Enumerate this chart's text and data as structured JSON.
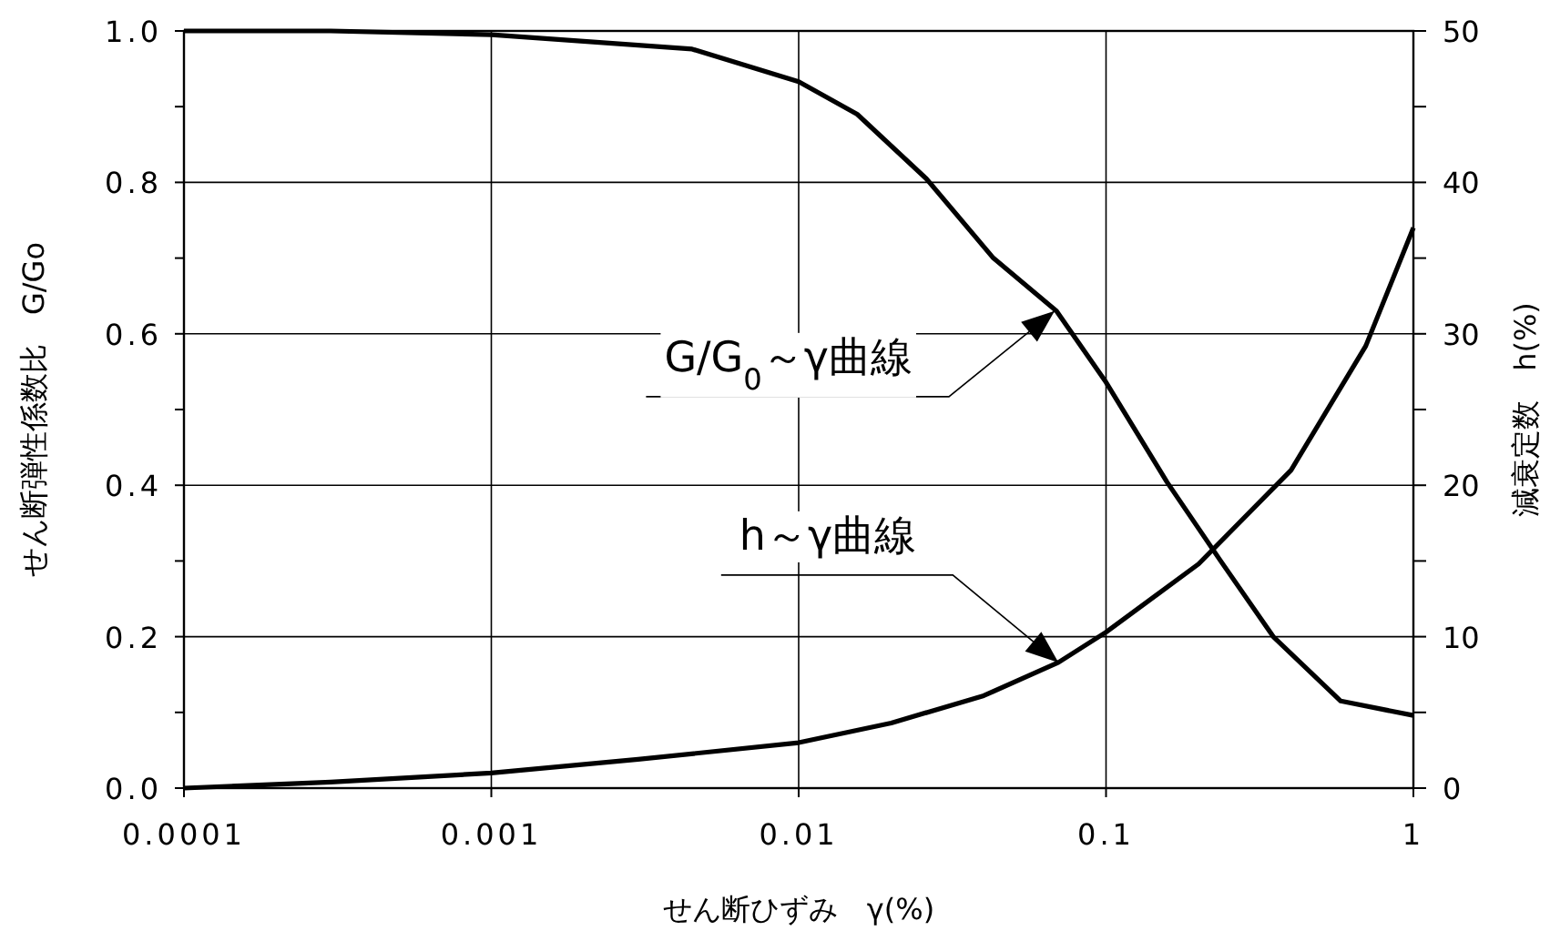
{
  "chart_data": {
    "type": "line",
    "xlabel": "せん断ひずみ　γ(%)",
    "ylabel": "せん断弾性係数比　G/Go",
    "y2label": "減衰定数　h(%)",
    "log": "x",
    "grid": true,
    "xlim": [
      0.0001,
      1
    ],
    "ylim": [
      0,
      1
    ],
    "y2lim": [
      0,
      50
    ],
    "xticks": [
      {
        "value": 0.0001,
        "label": "0.0001"
      },
      {
        "value": 0.001,
        "label": "0.001"
      },
      {
        "value": 0.01,
        "label": "0.01"
      },
      {
        "value": 0.1,
        "label": "0.1"
      },
      1
    ],
    "yticks": [
      {
        "value": 0,
        "label": "0.0"
      },
      {
        "value": 0.1,
        "label": null
      },
      {
        "value": 0.2,
        "label": "0.2"
      },
      {
        "value": 0.3,
        "label": null
      },
      {
        "value": 0.4,
        "label": "0.4"
      },
      {
        "value": 0.5,
        "label": null
      },
      {
        "value": 0.6,
        "label": "0.6"
      },
      {
        "value": 0.7,
        "label": null
      },
      {
        "value": 0.8,
        "label": "0.8"
      },
      {
        "value": 0.9,
        "label": null
      },
      {
        "value": 1,
        "label": "1.0"
      }
    ],
    "y2ticks": [
      0,
      {
        "value": 5,
        "label": null
      },
      10,
      {
        "value": 15,
        "label": null
      },
      20,
      {
        "value": 25,
        "label": null
      },
      30,
      {
        "value": 35,
        "label": null
      },
      40,
      {
        "value": 45,
        "label": null
      },
      50
    ],
    "series": [
      {
        "color": "#000000",
        "x": [
          0.0001,
          0.0003,
          0.001,
          0.0045,
          0.01,
          0.0155,
          0.026,
          0.043,
          0.069,
          0.1,
          0.158,
          0.236,
          0.35,
          0.58,
          1
        ],
        "values": [
          1.0,
          1.0,
          0.995,
          0.976,
          0.933,
          0.89,
          0.805,
          0.7,
          0.63,
          0.536,
          0.404,
          0.3,
          0.2,
          0.115,
          0.096
        ]
      },
      {
        "color": "#000000",
        "axis": "y2",
        "x": [
          0.0001,
          0.0003,
          0.001,
          0.003,
          0.01,
          0.02,
          0.04,
          0.07,
          0.1,
          0.2,
          0.4,
          0.7,
          1
        ],
        "values": [
          0,
          0.4,
          1.0,
          1.9,
          3.0,
          4.3,
          6.1,
          8.3,
          10.3,
          14.8,
          21.0,
          29.2,
          37.0
        ]
      }
    ],
    "annotations": [
      {
        "text": "G/G$_{0}$～γ曲線",
        "x": 0.068,
        "y": 0.63
      },
      {
        "text": "h～γ曲線",
        "x": 0.07,
        "y": 0.166
      }
    ]
  }
}
